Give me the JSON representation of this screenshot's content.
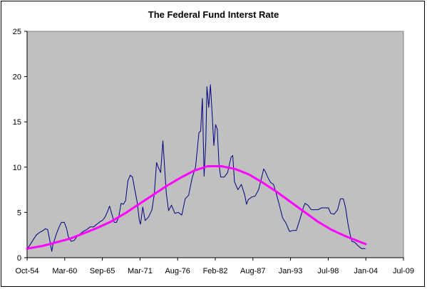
{
  "chart_data": {
    "type": "line",
    "title": "The Federal Fund Interst Rate",
    "xlabel": "",
    "ylabel": "",
    "x_tick_labels": [
      "Oct-54",
      "Mar-60",
      "Sep-65",
      "Mar-71",
      "Aug-76",
      "Feb-82",
      "Aug-87",
      "Jan-93",
      "Jul-98",
      "Jan-04",
      "Jul-09"
    ],
    "y_tick_labels": [
      "0",
      "5",
      "10",
      "15",
      "20",
      "25"
    ],
    "xlim": [
      "1954-10",
      "2009-07"
    ],
    "ylim": [
      0,
      25
    ],
    "grid": false,
    "legend": "none",
    "plot_background": "#C0C0C0",
    "series": [
      {
        "color": "#000080",
        "style": "thin-line",
        "x": [
          "1954-10",
          "1955-03",
          "1955-08",
          "1956-02",
          "1956-08",
          "1957-02",
          "1957-06",
          "1957-10",
          "1958-02",
          "1958-05",
          "1958-07",
          "1958-10",
          "1959-01",
          "1959-06",
          "1959-10",
          "1960-03",
          "1960-07",
          "1960-10",
          "1961-03",
          "1961-08",
          "1962-01",
          "1962-06",
          "1962-12",
          "1963-06",
          "1963-12",
          "1964-06",
          "1964-12",
          "1965-06",
          "1965-09",
          "1965-12",
          "1966-03",
          "1966-07",
          "1966-10",
          "1967-02",
          "1967-06",
          "1967-10",
          "1968-02",
          "1968-06",
          "1968-10",
          "1969-02",
          "1969-06",
          "1969-10",
          "1970-02",
          "1970-06",
          "1970-10",
          "1971-02",
          "1971-04",
          "1971-08",
          "1971-12",
          "1972-06",
          "1972-12",
          "1973-04",
          "1973-08",
          "1973-11",
          "1974-03",
          "1974-07",
          "1974-10",
          "1975-01",
          "1975-05",
          "1975-10",
          "1976-04",
          "1976-10",
          "1977-04",
          "1977-10",
          "1978-04",
          "1978-10",
          "1979-04",
          "1979-10",
          "1980-01",
          "1980-04",
          "1980-07",
          "1980-10",
          "1980-12",
          "1981-03",
          "1981-06",
          "1981-09",
          "1981-12",
          "1982-03",
          "1982-06",
          "1982-09",
          "1982-12",
          "1983-06",
          "1983-12",
          "1984-06",
          "1984-09",
          "1984-12",
          "1985-06",
          "1985-12",
          "1986-06",
          "1986-09",
          "1986-12",
          "1987-06",
          "1987-12",
          "1988-06",
          "1988-12",
          "1989-03",
          "1989-06",
          "1989-10",
          "1990-03",
          "1990-08",
          "1990-12",
          "1991-06",
          "1991-12",
          "1992-06",
          "1992-12",
          "1993-06",
          "1993-12",
          "1994-06",
          "1994-12",
          "1995-03",
          "1995-08",
          "1996-02",
          "1996-08",
          "1997-02",
          "1997-08",
          "1998-02",
          "1998-08",
          "1998-12",
          "1999-06",
          "1999-12",
          "2000-05",
          "2000-10",
          "2001-02",
          "2001-06",
          "2001-10",
          "2002-01",
          "2002-06",
          "2002-12",
          "2003-06",
          "2003-12"
        ],
        "y": [
          1.0,
          1.4,
          1.9,
          2.5,
          2.8,
          3.0,
          3.2,
          3.1,
          1.8,
          0.7,
          1.4,
          2.0,
          2.6,
          3.4,
          3.9,
          3.9,
          3.2,
          2.3,
          1.8,
          1.9,
          2.3,
          2.6,
          2.9,
          3.1,
          3.4,
          3.4,
          3.7,
          4.0,
          4.1,
          4.3,
          4.6,
          5.2,
          5.7,
          4.8,
          3.9,
          3.9,
          4.5,
          6.0,
          5.9,
          6.3,
          8.5,
          9.1,
          8.9,
          7.5,
          6.2,
          4.1,
          3.7,
          5.6,
          4.1,
          4.5,
          5.3,
          7.0,
          10.5,
          10.0,
          9.4,
          12.9,
          10.0,
          7.1,
          5.2,
          5.8,
          4.9,
          5.0,
          4.7,
          6.5,
          6.9,
          8.8,
          10.0,
          13.8,
          14.0,
          17.6,
          9.0,
          12.8,
          18.9,
          16.6,
          19.1,
          15.9,
          12.4,
          14.7,
          14.2,
          10.3,
          8.9,
          8.9,
          9.4,
          11.1,
          11.3,
          8.4,
          7.5,
          8.1,
          6.9,
          5.9,
          6.4,
          6.7,
          6.8,
          7.5,
          9.0,
          9.8,
          9.5,
          8.9,
          8.3,
          8.1,
          7.3,
          5.9,
          4.4,
          3.8,
          2.9,
          3.0,
          3.0,
          4.2,
          5.5,
          6.0,
          5.8,
          5.3,
          5.3,
          5.3,
          5.5,
          5.5,
          5.5,
          4.9,
          4.8,
          5.3,
          6.5,
          6.5,
          5.5,
          3.8,
          2.5,
          1.8,
          1.7,
          1.3,
          1.0,
          1.0
        ]
      },
      {
        "color": "#FF00FF",
        "style": "thick-line",
        "x": [
          "1954-10",
          "1957-01",
          "1959-01",
          "1961-01",
          "1963-01",
          "1965-01",
          "1967-01",
          "1969-01",
          "1971-01",
          "1973-01",
          "1975-01",
          "1977-01",
          "1979-01",
          "1981-01",
          "1983-01",
          "1985-01",
          "1987-01",
          "1989-01",
          "1991-01",
          "1993-01",
          "1995-01",
          "1997-01",
          "1999-01",
          "2001-01",
          "2003-01",
          "2004-01"
        ],
        "y": [
          1.0,
          1.3,
          1.7,
          2.1,
          2.7,
          3.3,
          4.0,
          4.9,
          5.9,
          6.9,
          7.9,
          8.8,
          9.6,
          10.1,
          10.1,
          9.8,
          9.2,
          8.3,
          7.3,
          6.2,
          5.1,
          4.0,
          3.1,
          2.4,
          1.8,
          1.5
        ]
      }
    ]
  }
}
